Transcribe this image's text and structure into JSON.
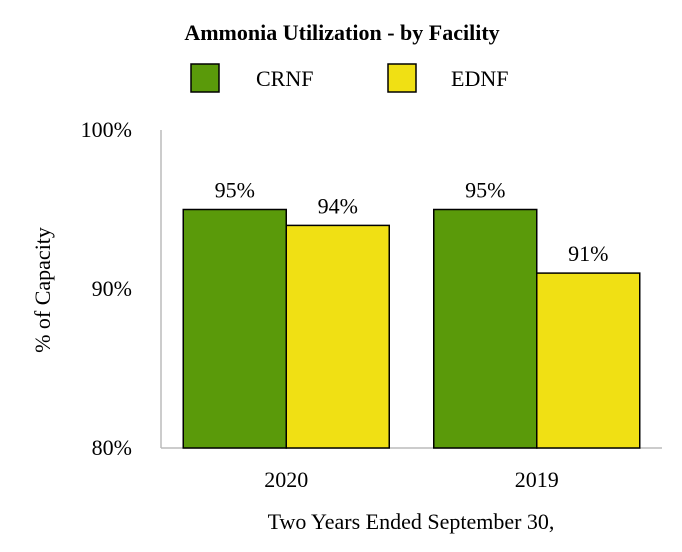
{
  "chart_data": {
    "type": "bar",
    "title": "Ammonia Utilization - by Facility",
    "xlabel": "Two Years Ended September 30,",
    "ylabel": "% of Capacity",
    "categories": [
      "2020",
      "2019"
    ],
    "series": [
      {
        "name": "CRNF",
        "values": [
          95,
          95
        ],
        "labels": [
          "95%",
          "95%"
        ],
        "color": "#5a9a0a"
      },
      {
        "name": "EDNF",
        "values": [
          94,
          91
        ],
        "labels": [
          "94%",
          "91%"
        ],
        "color": "#f0e014"
      }
    ],
    "ylim": [
      80,
      100
    ],
    "yticks": [
      {
        "value": 80,
        "label": "80%"
      },
      {
        "value": 90,
        "label": "90%"
      },
      {
        "value": 100,
        "label": "100%"
      }
    ],
    "grid": false,
    "legend_position": "top"
  }
}
